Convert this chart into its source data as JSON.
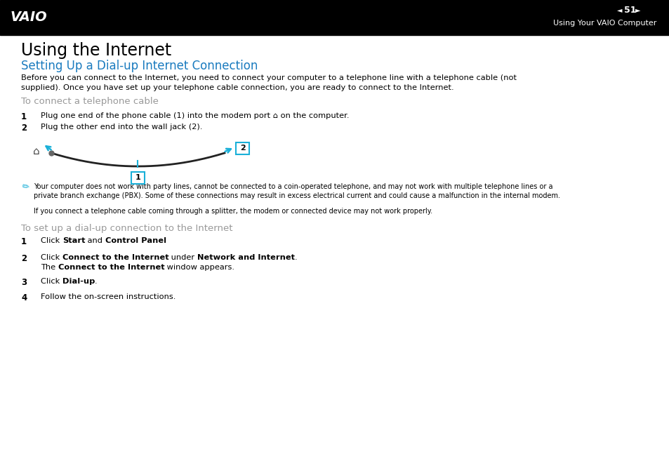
{
  "header_bg": "#000000",
  "header_text_color": "#ffffff",
  "header_page_num": "51",
  "header_subtitle": "Using Your VAIO Computer",
  "page_bg": "#ffffff",
  "main_title": "Using the Internet",
  "section_title": "Setting Up a Dial-up Internet Connection",
  "section_title_color": "#1a7bbf",
  "body_text_color": "#000000",
  "gray_text_color": "#999999",
  "intro_line1": "Before you can connect to the Internet, you need to connect your computer to a telephone line with a telephone cable (not",
  "intro_line2": "supplied). Once you have set up your telephone cable connection, you are ready to connect to the Internet.",
  "sub_heading1": "To connect a telephone cable",
  "sub_heading2": "To set up a dial-up connection to the Internet",
  "note_line1": "Your computer does not work with party lines, cannot be connected to a coin-operated telephone, and may not work with multiple telephone lines or a",
  "note_line2": "private branch exchange (PBX). Some of these connections may result in excess electrical current and could cause a malfunction in the internal modem.",
  "note_line3": "If you connect a telephone cable coming through a splitter, the modem or connected device may not work properly.",
  "cable_color": "#222222",
  "arrow_color": "#1ab0d8",
  "box_color": "#1ab0d8"
}
